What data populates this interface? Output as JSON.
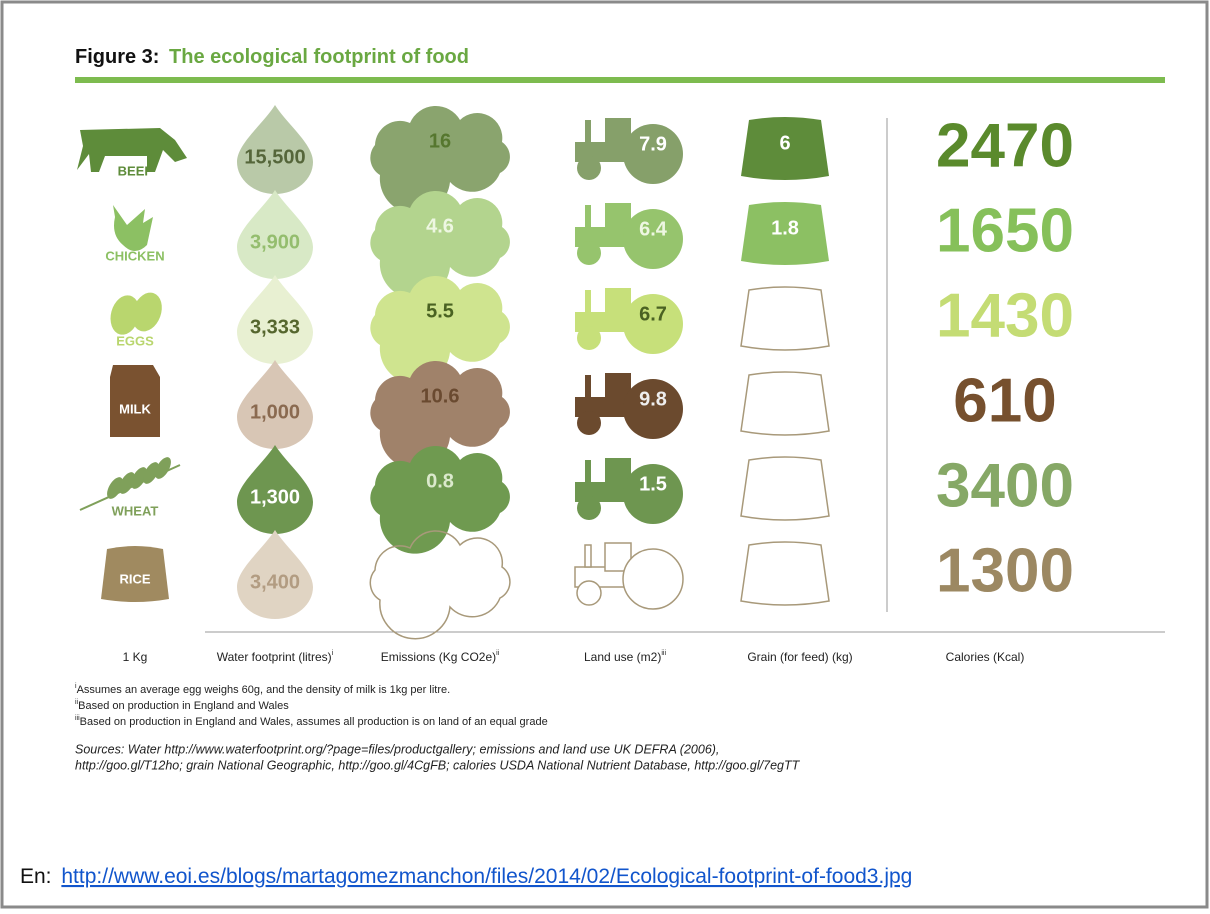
{
  "header": {
    "figure": "Figure 3:",
    "title": "The ecological footprint of food"
  },
  "columns": [
    {
      "label": "1 Kg"
    },
    {
      "label": "Water footprint (litres)",
      "note": "i"
    },
    {
      "label": "Emissions (Kg CO2e)",
      "note": "ii"
    },
    {
      "label": "Land use (m2)",
      "note": "iii"
    },
    {
      "label": "Grain (for feed) (kg)"
    },
    {
      "label": "Calories (Kcal)"
    }
  ],
  "rows": [
    {
      "food": "BEEF",
      "water": "15,500",
      "emissions": "16",
      "land": "7.9",
      "grain": "6",
      "calories": "2470"
    },
    {
      "food": "CHICKEN",
      "water": "3,900",
      "emissions": "4.6",
      "land": "6.4",
      "grain": "1.8",
      "calories": "1650"
    },
    {
      "food": "EGGS",
      "water": "3,333",
      "emissions": "5.5",
      "land": "6.7",
      "grain": null,
      "calories": "1430"
    },
    {
      "food": "MILK",
      "water": "1,000",
      "emissions": "10.6",
      "land": "9.8",
      "grain": null,
      "calories": "610"
    },
    {
      "food": "WHEAT",
      "water": "1,300",
      "emissions": "0.8",
      "land": "1.5",
      "grain": null,
      "calories": "3400"
    },
    {
      "food": "RICE",
      "water": "3,400",
      "emissions": null,
      "land": null,
      "grain": null,
      "calories": "1300"
    }
  ],
  "footnotes": [
    {
      "mark": "i",
      "text": "Assumes an average egg weighs 60g, and the density of milk is 1kg per litre."
    },
    {
      "mark": "ii",
      "text": "Based on production in England and Wales"
    },
    {
      "mark": "iii",
      "text": "Based on production in England and Wales, assumes all production is on land of an equal grade"
    }
  ],
  "sources": [
    "Sources: Water http://www.waterfootprint.org/?page=files/productgallery; emissions and land use UK DEFRA (2006),",
    "http://goo.gl/T12ho; grain National Geographic, http://goo.gl/4CgFB; calories USDA National Nutrient Database,  http://goo.gl/7egTT"
  ],
  "link": {
    "prefix": "En:",
    "url": "http://www.eoi.es/blogs/martagomezmanchon/files/2014/02/Ecological-footprint-of-food3.jpg"
  }
}
